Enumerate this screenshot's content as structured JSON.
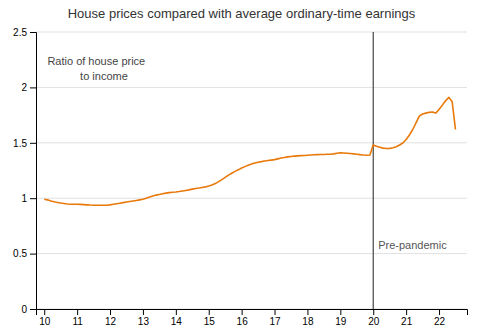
{
  "chart_data": {
    "type": "line",
    "title": "House prices compared with average ordinary-time earnings",
    "x": [
      10.0,
      10.1,
      10.2,
      10.3,
      10.4,
      10.5,
      10.6,
      10.7,
      10.8,
      10.9,
      11.0,
      11.1,
      11.2,
      11.3,
      11.4,
      11.5,
      11.6,
      11.7,
      11.8,
      11.9,
      12.0,
      12.1,
      12.2,
      12.3,
      12.4,
      12.5,
      12.6,
      12.7,
      12.8,
      12.9,
      13.0,
      13.1,
      13.2,
      13.3,
      13.4,
      13.5,
      13.6,
      13.7,
      13.8,
      13.9,
      14.0,
      14.1,
      14.2,
      14.3,
      14.4,
      14.5,
      14.6,
      14.7,
      14.8,
      14.9,
      15.0,
      15.1,
      15.2,
      15.3,
      15.4,
      15.5,
      15.6,
      15.7,
      15.8,
      15.9,
      16.0,
      16.1,
      16.2,
      16.3,
      16.4,
      16.5,
      16.6,
      16.7,
      16.8,
      16.9,
      17.0,
      17.1,
      17.2,
      17.3,
      17.4,
      17.5,
      17.6,
      17.7,
      17.8,
      17.9,
      18.0,
      18.1,
      18.2,
      18.3,
      18.4,
      18.5,
      18.6,
      18.7,
      18.8,
      18.9,
      19.0,
      19.1,
      19.2,
      19.3,
      19.4,
      19.5,
      19.6,
      19.7,
      19.8,
      19.9,
      20.0,
      20.1,
      20.2,
      20.3,
      20.4,
      20.5,
      20.6,
      20.7,
      20.8,
      20.9,
      21.0,
      21.1,
      21.2,
      21.3,
      21.4,
      21.5,
      21.6,
      21.7,
      21.8,
      21.9,
      22.0,
      22.1,
      22.2,
      22.3,
      22.4,
      22.5
    ],
    "values": [
      0.99,
      0.985,
      0.975,
      0.968,
      0.962,
      0.956,
      0.952,
      0.948,
      0.946,
      0.945,
      0.945,
      0.944,
      0.942,
      0.94,
      0.938,
      0.937,
      0.936,
      0.936,
      0.936,
      0.937,
      0.94,
      0.945,
      0.95,
      0.955,
      0.96,
      0.965,
      0.97,
      0.975,
      0.98,
      0.985,
      0.99,
      1.0,
      1.01,
      1.02,
      1.028,
      1.034,
      1.04,
      1.046,
      1.05,
      1.053,
      1.056,
      1.06,
      1.065,
      1.07,
      1.075,
      1.082,
      1.088,
      1.092,
      1.097,
      1.102,
      1.11,
      1.12,
      1.132,
      1.15,
      1.168,
      1.188,
      1.208,
      1.225,
      1.242,
      1.256,
      1.272,
      1.285,
      1.298,
      1.308,
      1.318,
      1.325,
      1.33,
      1.336,
      1.34,
      1.344,
      1.348,
      1.355,
      1.362,
      1.368,
      1.373,
      1.377,
      1.38,
      1.382,
      1.384,
      1.386,
      1.388,
      1.39,
      1.392,
      1.393,
      1.394,
      1.395,
      1.396,
      1.397,
      1.4,
      1.406,
      1.41,
      1.408,
      1.406,
      1.403,
      1.4,
      1.397,
      1.393,
      1.39,
      1.388,
      1.39,
      1.48,
      1.468,
      1.46,
      1.452,
      1.448,
      1.45,
      1.455,
      1.465,
      1.48,
      1.498,
      1.53,
      1.57,
      1.62,
      1.68,
      1.74,
      1.76,
      1.768,
      1.775,
      1.778,
      1.768,
      1.8,
      1.84,
      1.88,
      1.91,
      1.87,
      1.62
    ],
    "color": "#E8790A",
    "xlim": [
      9.75,
      22.85
    ],
    "ylim": [
      0,
      2.5
    ],
    "xticks": [
      10,
      11,
      12,
      13,
      14,
      15,
      16,
      17,
      18,
      19,
      20,
      21,
      22
    ],
    "yticks": [
      0,
      0.5,
      1,
      1.5,
      2,
      2.5
    ],
    "grid": "y",
    "annotations": [
      {
        "text": "Ratio of house price\n     to income"
      }
    ],
    "reference_lines": [
      {
        "x": 20.0,
        "label": "Pre-pandemic",
        "color": "#444444"
      }
    ]
  }
}
